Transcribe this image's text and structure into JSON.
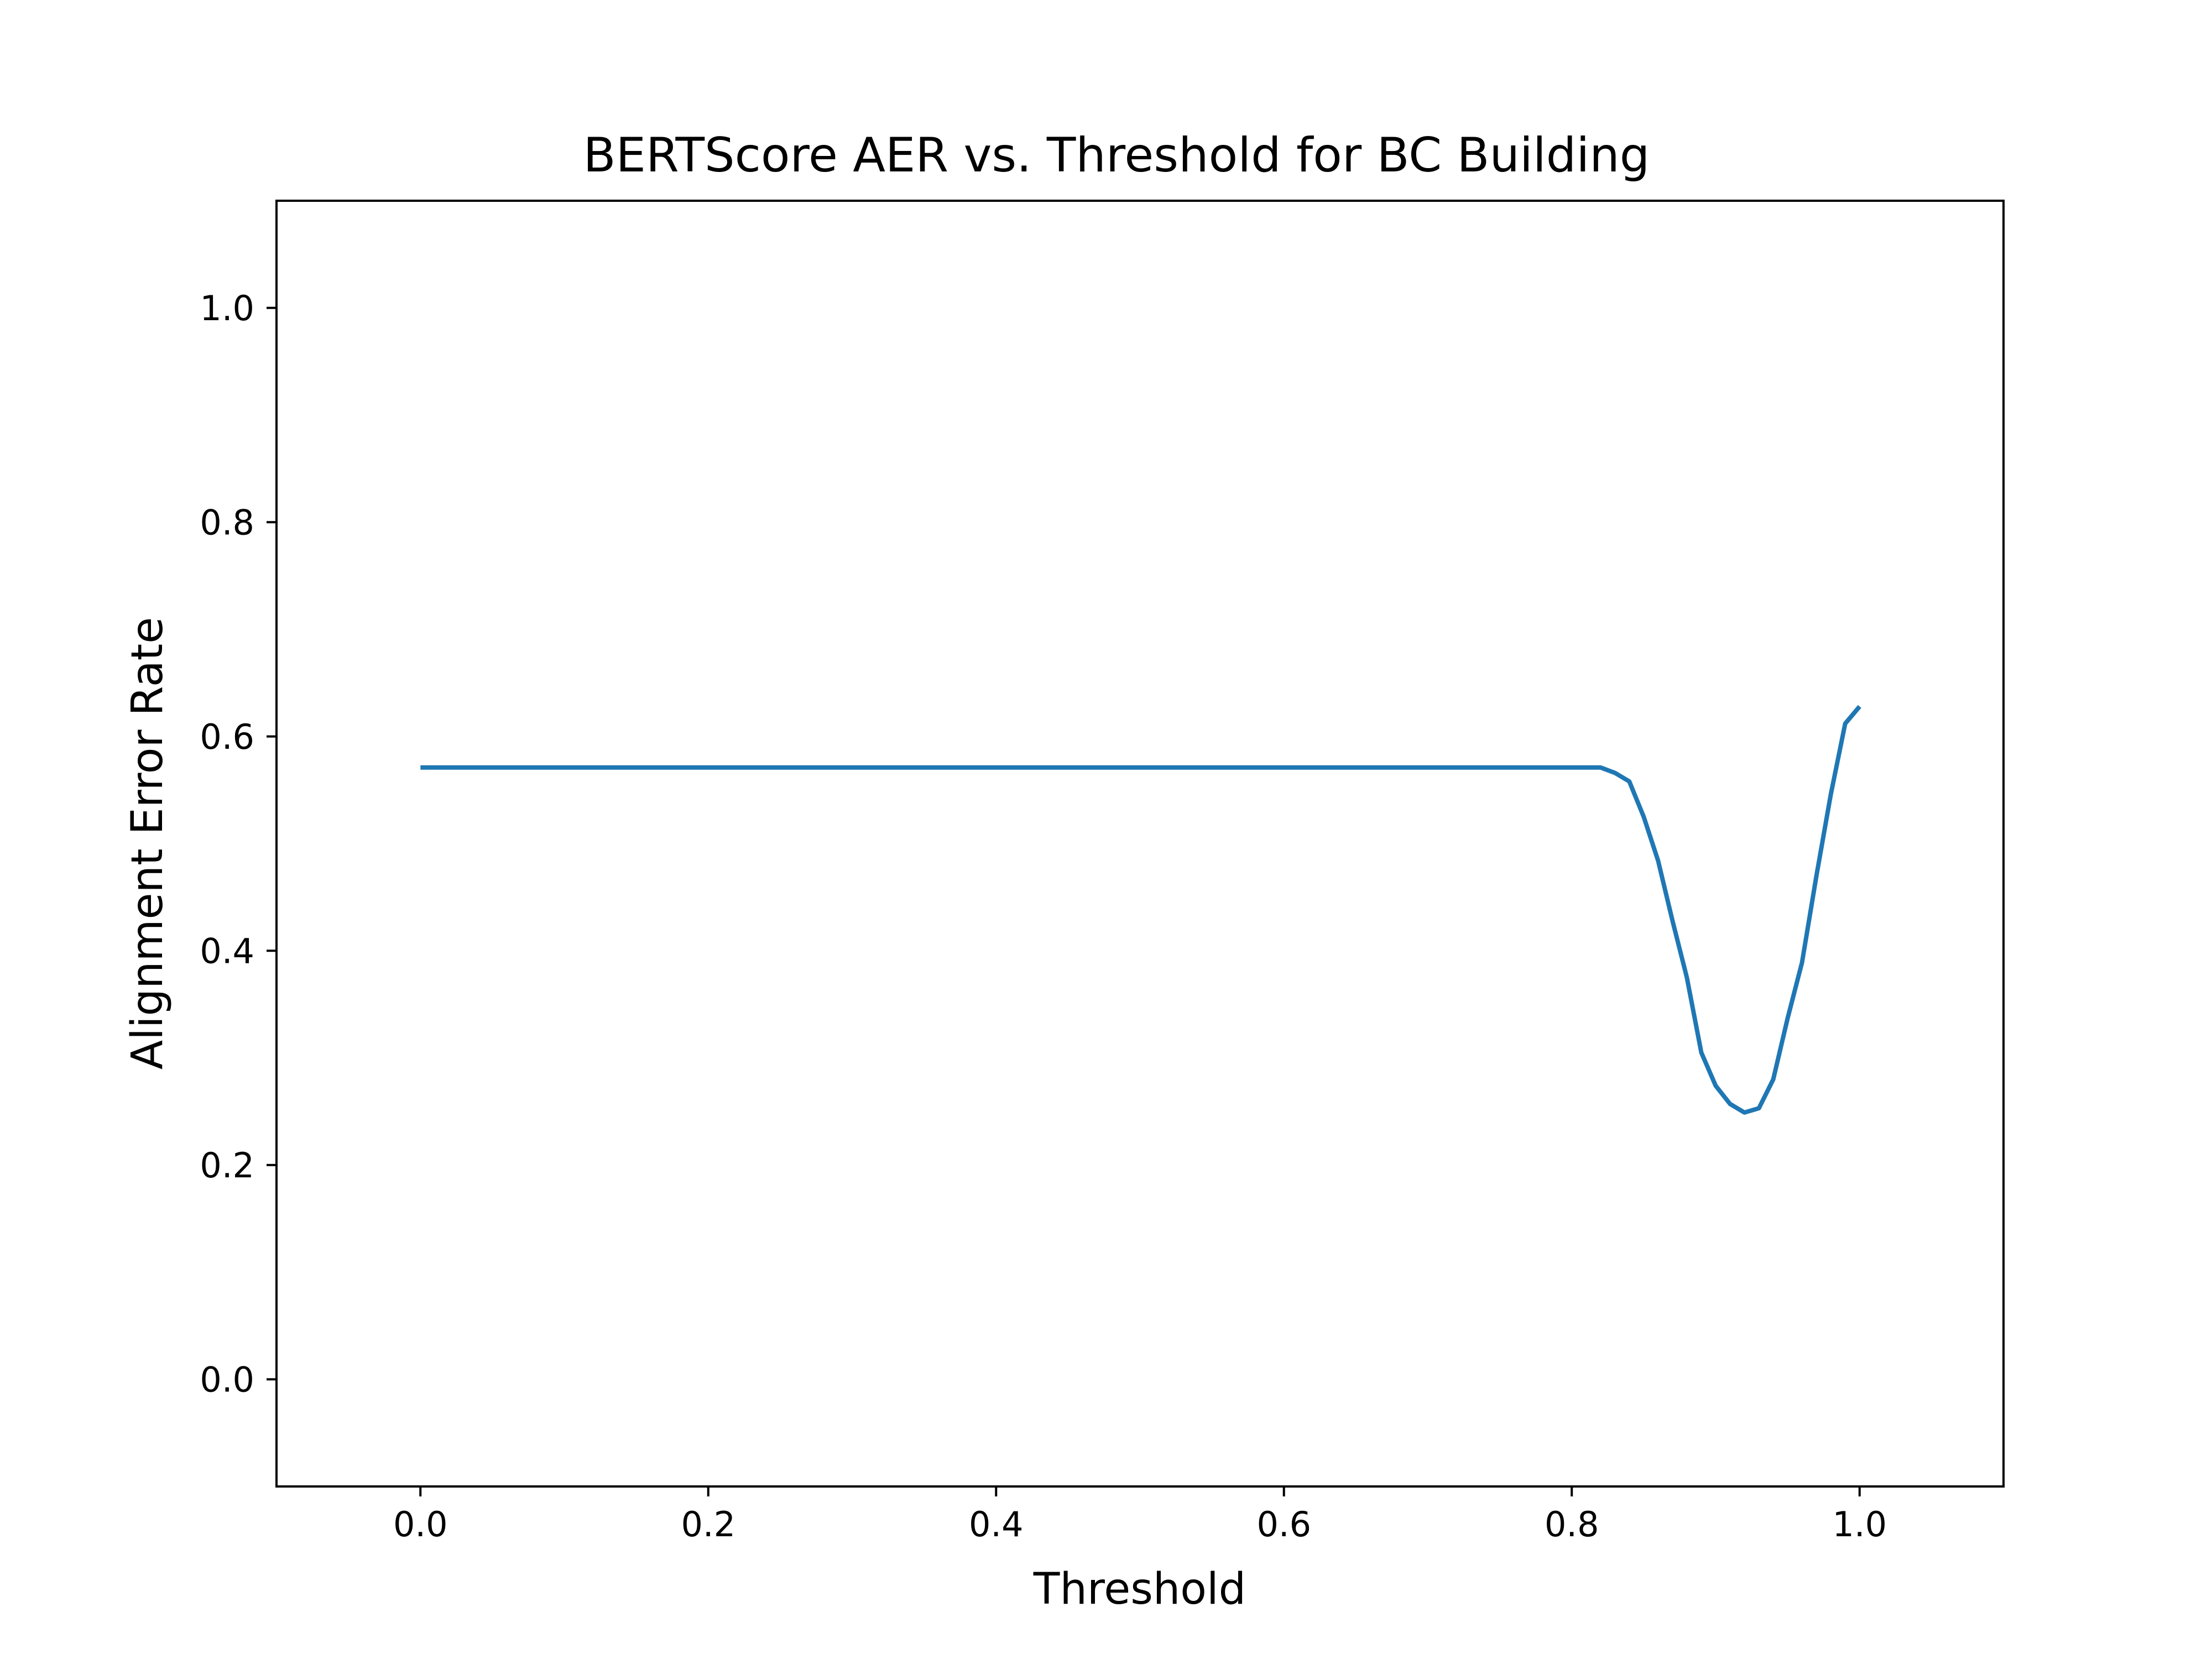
{
  "colors": {
    "line": "#1f77b4",
    "axes": "#000000",
    "background": "#ffffff"
  },
  "chart_data": {
    "type": "line",
    "title": "BERTScore AER vs. Threshold for BC Building",
    "xlabel": "Threshold",
    "ylabel": "Alignment Error Rate",
    "xlim": [
      -0.1,
      1.1
    ],
    "ylim": [
      -0.1,
      1.1
    ],
    "xticks": [
      0.0,
      0.2,
      0.4,
      0.6,
      0.8,
      1.0
    ],
    "xtick_labels": [
      "0.0",
      "0.2",
      "0.4",
      "0.6",
      "0.8",
      "1.0"
    ],
    "yticks": [
      0.0,
      0.2,
      0.4,
      0.6,
      0.8,
      1.0
    ],
    "ytick_labels": [
      "0.0",
      "0.2",
      "0.4",
      "0.6",
      "0.8",
      "1.0"
    ],
    "grid": false,
    "legend": "none",
    "series": [
      {
        "x": [
          0.0,
          0.1,
          0.2,
          0.3,
          0.4,
          0.5,
          0.6,
          0.7,
          0.8,
          0.82,
          0.83,
          0.84,
          0.85,
          0.86,
          0.87,
          0.88,
          0.89,
          0.9,
          0.91,
          0.92,
          0.93,
          0.94,
          0.95,
          0.96,
          0.97,
          0.98,
          0.99,
          1.0
        ],
        "y": [
          0.571,
          0.571,
          0.571,
          0.571,
          0.571,
          0.571,
          0.571,
          0.571,
          0.571,
          0.571,
          0.566,
          0.558,
          0.525,
          0.484,
          0.428,
          0.375,
          0.305,
          0.274,
          0.257,
          0.249,
          0.253,
          0.28,
          0.337,
          0.389,
          0.47,
          0.546,
          0.612,
          0.628
        ]
      }
    ]
  }
}
